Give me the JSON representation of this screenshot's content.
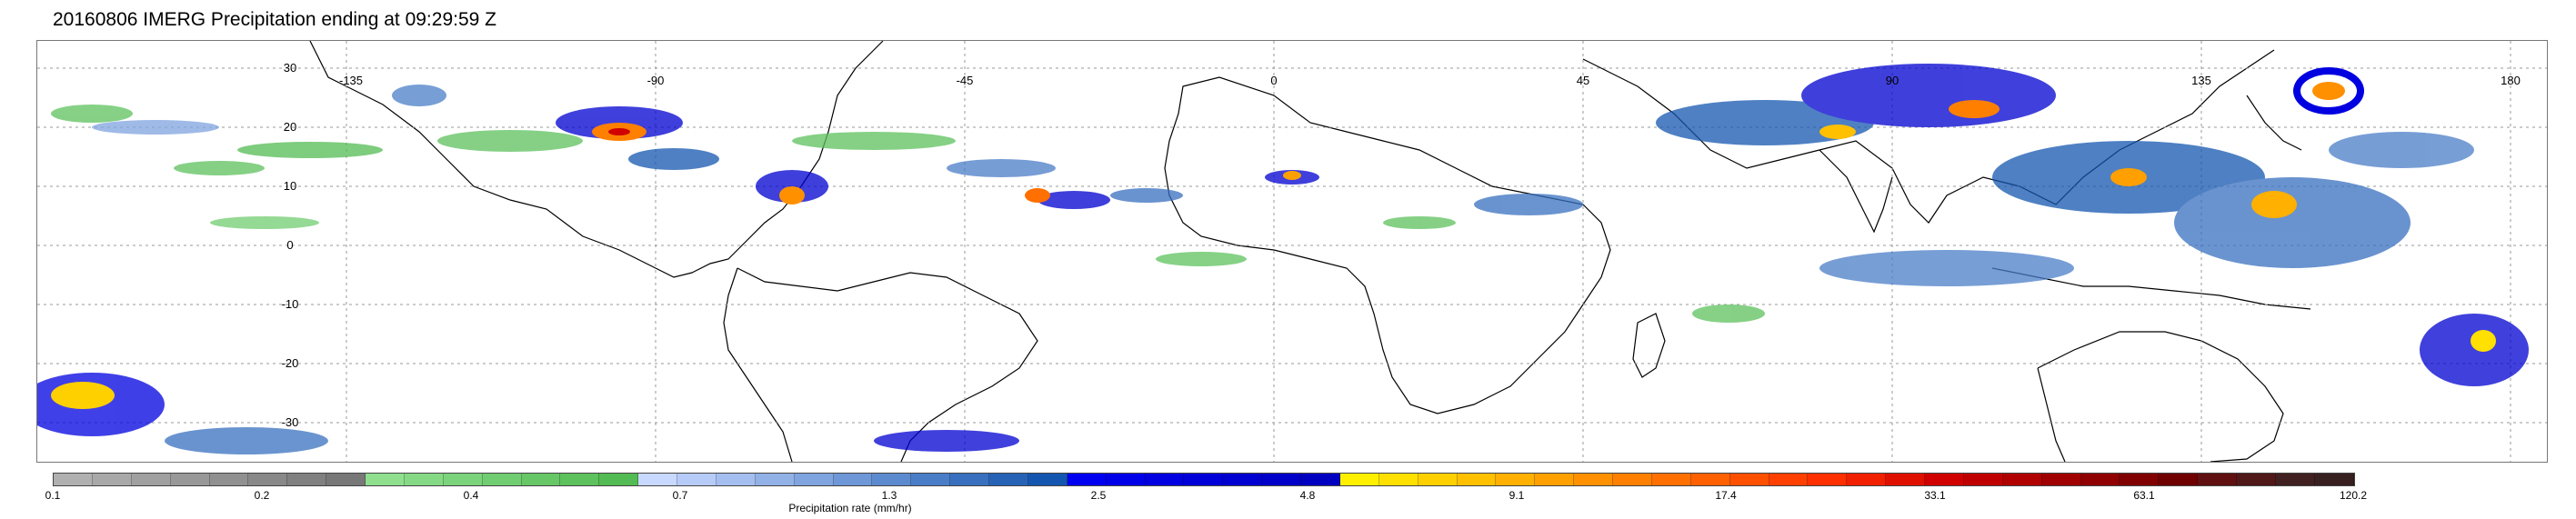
{
  "title": "20160806 IMERG Precipitation ending at 09:29:59 Z",
  "map": {
    "lon_labels": [
      "-135",
      "-90",
      "-45",
      "0",
      "45",
      "90",
      "135",
      "180"
    ],
    "lat_labels": [
      "30",
      "20",
      "10",
      "0",
      "-10",
      "-20",
      "-30"
    ],
    "grid": true,
    "land_outline_color": "#000000"
  },
  "colorbar": {
    "label": "Precipitation rate (mm/hr)",
    "tick_labels": [
      "0.1",
      "0.2",
      "0.4",
      "0.7",
      "1.3",
      "2.5",
      "4.8",
      "9.1",
      "17.4",
      "33.1",
      "63.1",
      "120.2"
    ],
    "colors": [
      "#b0b0b0",
      "#a8a8a8",
      "#a0a0a0",
      "#989898",
      "#909090",
      "#888888",
      "#808080",
      "#787878",
      "#8fdf8f",
      "#85d985",
      "#7bd37b",
      "#71cd71",
      "#67c767",
      "#5dc15d",
      "#53bb53",
      "#c8d8ff",
      "#b6cbf7",
      "#a4beef",
      "#92b1e7",
      "#80a4df",
      "#6e97d7",
      "#5c8acf",
      "#4a7dc7",
      "#3870bf",
      "#2663b7",
      "#1456af",
      "#0000f0",
      "#0000e8",
      "#0000e0",
      "#0000d8",
      "#0000d0",
      "#0000c8",
      "#0000c0",
      "#fff000",
      "#ffe000",
      "#ffd000",
      "#ffc000",
      "#ffb000",
      "#ffa000",
      "#ff9000",
      "#ff8000",
      "#ff7000",
      "#ff6000",
      "#ff5000",
      "#ff4000",
      "#ff3000",
      "#f02000",
      "#e01000",
      "#d00000",
      "#c00000",
      "#b00000",
      "#a00000",
      "#900000",
      "#800000",
      "#700000",
      "#601010",
      "#501818",
      "#402020",
      "#382020"
    ]
  }
}
